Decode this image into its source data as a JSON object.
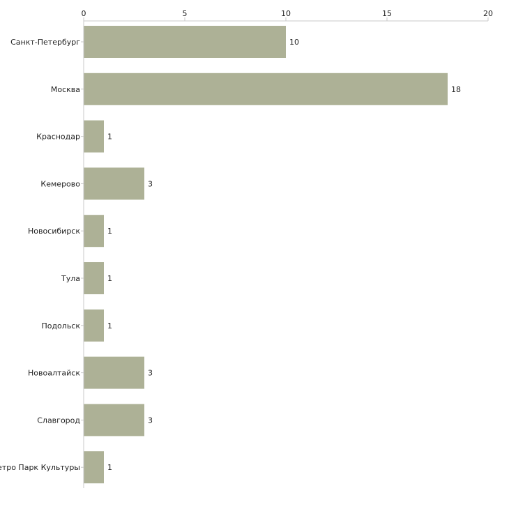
{
  "chart_data": {
    "type": "bar",
    "orientation": "horizontal",
    "title": "",
    "xlabel": "",
    "ylabel": "",
    "xlim": [
      0,
      20
    ],
    "ticks": [
      0,
      5,
      10,
      15,
      20
    ],
    "grid": false,
    "bar_color": "#adb196",
    "categories": [
      "Санкт-Петербург",
      "Москва",
      "Краснодар",
      "Кемерово",
      "Новосибирск",
      "Тула",
      "Подольск",
      "Новоалтайск",
      "Славгород",
      "метро Парк Культуры"
    ],
    "values": [
      10,
      18,
      1,
      3,
      1,
      1,
      1,
      3,
      3,
      1
    ]
  }
}
